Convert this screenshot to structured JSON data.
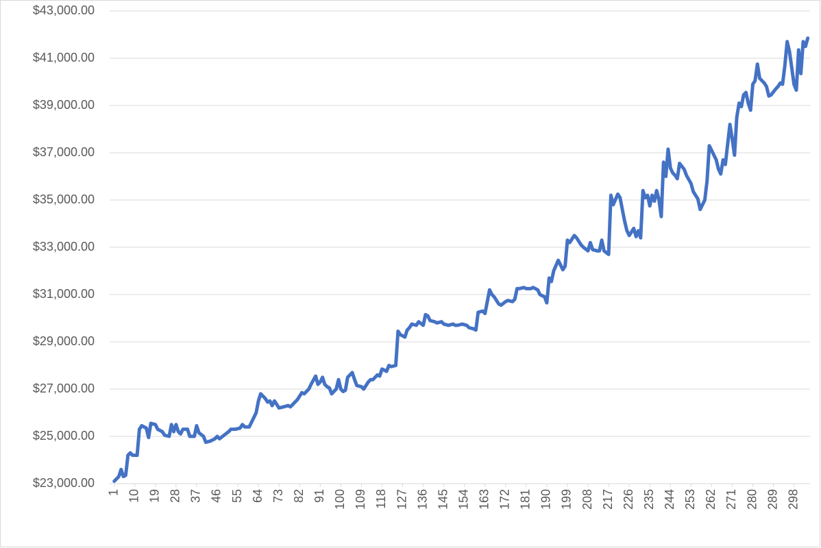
{
  "chart_data": {
    "type": "line",
    "x": [
      1,
      3,
      4,
      5,
      6,
      7,
      8,
      9,
      11,
      12,
      13,
      15,
      16,
      17,
      19,
      20,
      22,
      23,
      25,
      26,
      27,
      28,
      29,
      30,
      31,
      33,
      34,
      36,
      37,
      38,
      40,
      41,
      43,
      45,
      46,
      47,
      49,
      51,
      52,
      54,
      56,
      57,
      58,
      60,
      61,
      63,
      64,
      65,
      67,
      68,
      69,
      70,
      71,
      72,
      73,
      75,
      77,
      78,
      80,
      81,
      83,
      84,
      86,
      87,
      89,
      90,
      91,
      92,
      93,
      94,
      95,
      96,
      98,
      99,
      100,
      101,
      102,
      103,
      105,
      106,
      107,
      109,
      110,
      112,
      113,
      114,
      116,
      117,
      118,
      119,
      120,
      121,
      122,
      124,
      125,
      126,
      128,
      129,
      130,
      131,
      133,
      134,
      136,
      137,
      138,
      139,
      141,
      142,
      144,
      145,
      147,
      149,
      150,
      151,
      153,
      155,
      156,
      158,
      159,
      160,
      162,
      163,
      165,
      166,
      167,
      169,
      170,
      172,
      173,
      175,
      176,
      177,
      178,
      180,
      181,
      183,
      184,
      186,
      187,
      189,
      190,
      191,
      192,
      193,
      195,
      196,
      197,
      198,
      199,
      200,
      202,
      203,
      205,
      206,
      208,
      209,
      210,
      212,
      213,
      214,
      215,
      217,
      218,
      219,
      221,
      222,
      223,
      224,
      225,
      226,
      228,
      229,
      230,
      231,
      232,
      233,
      234,
      235,
      236,
      237,
      238,
      239,
      240,
      241,
      242,
      243,
      244,
      245,
      246,
      247,
      248,
      250,
      251,
      253,
      254,
      256,
      257,
      259,
      260,
      261,
      262,
      264,
      265,
      266,
      267,
      268,
      270,
      271,
      272,
      273,
      274,
      275,
      276,
      277,
      278,
      279,
      280,
      281,
      282,
      283,
      285,
      286,
      287,
      288,
      290,
      291,
      292,
      293,
      294,
      295,
      296,
      297,
      298,
      299,
      300,
      301,
      302,
      303,
      304
    ],
    "series": [
      {
        "color": "#4472c4",
        "values": [
          23100,
          23300,
          23600,
          23300,
          23350,
          24200,
          24300,
          24200,
          24200,
          25300,
          25450,
          25350,
          24950,
          25550,
          25500,
          25300,
          25200,
          25050,
          25000,
          25500,
          25200,
          25500,
          25200,
          25100,
          25300,
          25300,
          25000,
          25000,
          25450,
          25150,
          25000,
          24750,
          24800,
          24900,
          25000,
          24900,
          25050,
          25200,
          25300,
          25300,
          25350,
          25500,
          25400,
          25400,
          25600,
          26000,
          26500,
          26800,
          26600,
          26450,
          26500,
          26300,
          26500,
          26350,
          26200,
          26250,
          26300,
          26250,
          26450,
          26550,
          26850,
          26800,
          27000,
          27200,
          27550,
          27200,
          27300,
          27500,
          27200,
          27100,
          27050,
          26800,
          27000,
          27400,
          27000,
          26900,
          26950,
          27500,
          27700,
          27400,
          27150,
          27100,
          27000,
          27300,
          27400,
          27400,
          27600,
          27550,
          27850,
          27800,
          27750,
          28000,
          27950,
          28000,
          29450,
          29300,
          29200,
          29500,
          29600,
          29750,
          29700,
          29850,
          29700,
          30150,
          30100,
          29900,
          29850,
          29800,
          29850,
          29750,
          29700,
          29750,
          29700,
          29700,
          29750,
          29700,
          29600,
          29550,
          29500,
          30250,
          30300,
          30200,
          31200,
          31000,
          30900,
          30600,
          30550,
          30700,
          30750,
          30700,
          30800,
          31250,
          31250,
          31300,
          31250,
          31250,
          31300,
          31200,
          31000,
          30900,
          30650,
          31700,
          31550,
          32000,
          32450,
          32250,
          32050,
          32200,
          33300,
          33200,
          33500,
          33400,
          33100,
          33000,
          32850,
          33200,
          32900,
          32850,
          32850,
          33300,
          32850,
          32700,
          35200,
          34800,
          35250,
          35100,
          34600,
          34100,
          33700,
          33500,
          33800,
          33450,
          33700,
          33400,
          35400,
          35100,
          35200,
          34750,
          35200,
          34950,
          35400,
          35000,
          34300,
          36600,
          36000,
          37150,
          36350,
          36150,
          36050,
          35900,
          36550,
          36300,
          36050,
          35700,
          35350,
          35050,
          34600,
          35000,
          35800,
          37300,
          37100,
          36700,
          36300,
          36100,
          36700,
          36500,
          38200,
          37600,
          36900,
          38500,
          39100,
          38950,
          39450,
          39550,
          39100,
          38800,
          39900,
          40050,
          40750,
          40150,
          39950,
          39800,
          39400,
          39450,
          39700,
          39800,
          39950,
          39900,
          40700,
          41700,
          41300,
          40600,
          39900,
          39650,
          41350,
          40350,
          41700,
          41500,
          41850
        ]
      }
    ],
    "xlim": [
      -1,
      305
    ],
    "xticks": [
      1,
      10,
      19,
      28,
      37,
      46,
      55,
      64,
      73,
      82,
      91,
      100,
      109,
      118,
      127,
      136,
      145,
      154,
      163,
      172,
      181,
      190,
      199,
      208,
      217,
      226,
      235,
      244,
      253,
      262,
      271,
      280,
      289,
      298
    ],
    "ylim": [
      23000,
      43000
    ],
    "yticks": [
      {
        "value": 23000,
        "label": "$23,000.00"
      },
      {
        "value": 25000,
        "label": "$25,000.00"
      },
      {
        "value": 27000,
        "label": "$27,000.00"
      },
      {
        "value": 29000,
        "label": "$29,000.00"
      },
      {
        "value": 31000,
        "label": "$31,000.00"
      },
      {
        "value": 33000,
        "label": "$33,000.00"
      },
      {
        "value": 35000,
        "label": "$35,000.00"
      },
      {
        "value": 37000,
        "label": "$37,000.00"
      },
      {
        "value": 39000,
        "label": "$39,000.00"
      },
      {
        "value": 41000,
        "label": "$41,000.00"
      },
      {
        "value": 43000,
        "label": "$43,000.00"
      }
    ],
    "grid": true
  }
}
